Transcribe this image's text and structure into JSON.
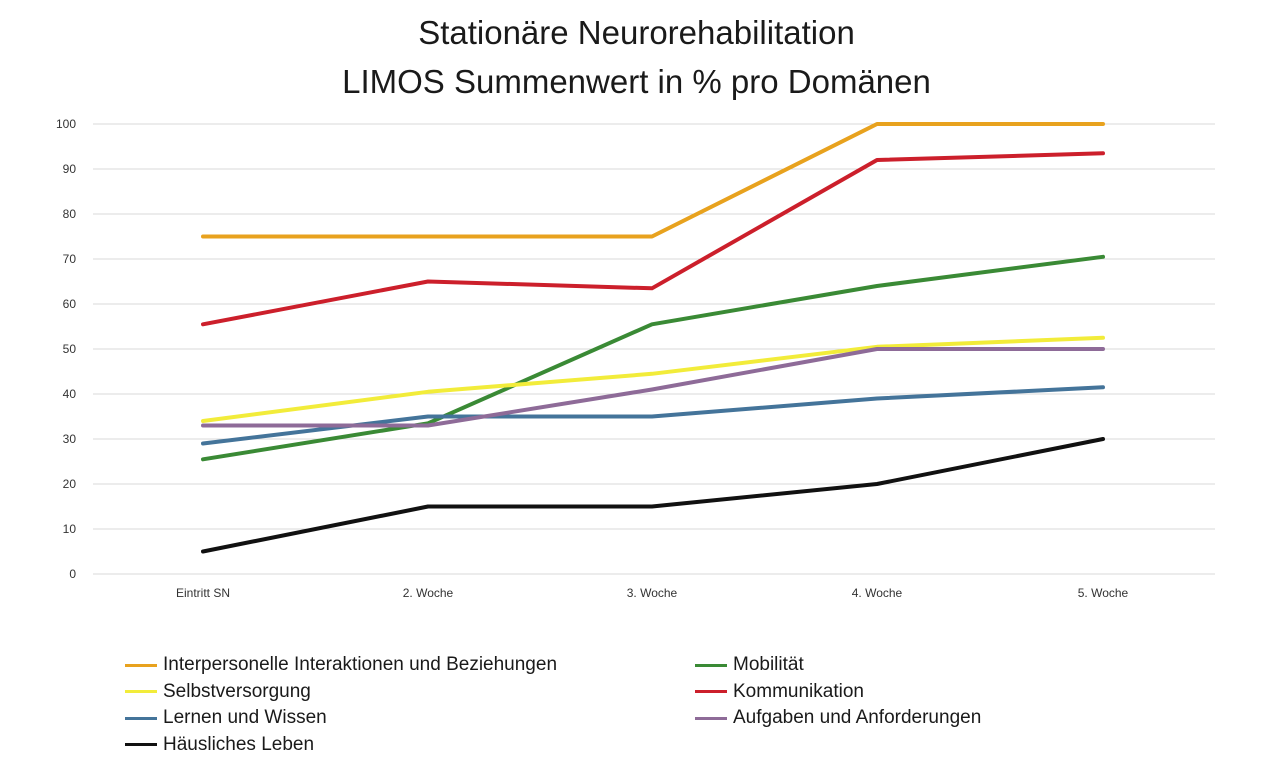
{
  "chart_data": {
    "type": "line",
    "title": "Stationäre Neurorehabilitation",
    "subtitle": "LIMOS Summenwert in % pro Domänen",
    "categories": [
      "Eintritt SN",
      "2. Woche",
      "3. Woche",
      "4. Woche",
      "5. Woche"
    ],
    "ylim": [
      0,
      100
    ],
    "yticks": [
      "0",
      "10",
      "20",
      "30",
      "40",
      "50",
      "60",
      "70",
      "80",
      "90",
      "100"
    ],
    "grid": true,
    "legend": "bottom",
    "series": [
      {
        "name": "Interpersonelle Interaktionen und Beziehungen",
        "color": "#E8A21E",
        "values": [
          75,
          75,
          75,
          100,
          100
        ]
      },
      {
        "name": "Mobilität",
        "color": "#3A8A35",
        "values": [
          25.5,
          33.5,
          55.5,
          64,
          70.5
        ]
      },
      {
        "name": "Selbstversorgung",
        "color": "#F2EC3A",
        "values": [
          34,
          40.5,
          44.5,
          50.5,
          52.5
        ]
      },
      {
        "name": "Kommunikation",
        "color": "#CC1F2B",
        "values": [
          55.5,
          65,
          63.5,
          92,
          93.5
        ]
      },
      {
        "name": "Lernen und Wissen",
        "color": "#44749A",
        "values": [
          29,
          35,
          35,
          39,
          41.5
        ]
      },
      {
        "name": "Aufgaben und Anforderungen",
        "color": "#8E6B98",
        "values": [
          33,
          33,
          41,
          50,
          50
        ]
      },
      {
        "name": "Häusliches Leben",
        "color": "#111111",
        "values": [
          5,
          15,
          15,
          20,
          30
        ]
      }
    ]
  }
}
